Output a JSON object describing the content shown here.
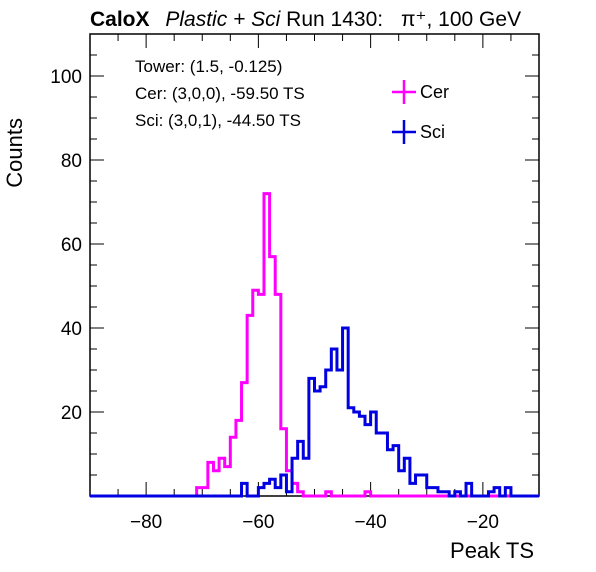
{
  "header": {
    "experiment": "CaloX",
    "config": "Plastic + Sci",
    "run": "Run 1430:",
    "particle": "π⁺, 100 GeV"
  },
  "annotations": [
    "Tower: (1.5, -0.125)",
    "Cer: (3,0,0), -59.50 TS",
    "Sci: (3,0,1), -44.50 TS"
  ],
  "chart_data": {
    "type": "histogram",
    "xlabel": "Peak TS",
    "ylabel": "Counts",
    "xlim": [
      -90,
      -10
    ],
    "ylim": [
      0,
      110
    ],
    "bin_width": 1,
    "x_ticks": [
      -80,
      -60,
      -40,
      -20
    ],
    "y_ticks": [
      20,
      40,
      60,
      80,
      100
    ],
    "legend_position": "top-right",
    "series": [
      {
        "name": "Cer",
        "color": "#ff00ff",
        "bins": [
          [
            -71,
            2
          ],
          [
            -70,
            2
          ],
          [
            -69,
            8
          ],
          [
            -68,
            6
          ],
          [
            -67,
            9
          ],
          [
            -66,
            7
          ],
          [
            -65,
            14
          ],
          [
            -64,
            18
          ],
          [
            -63,
            27
          ],
          [
            -62,
            43
          ],
          [
            -61,
            49
          ],
          [
            -60,
            48
          ],
          [
            -59,
            72
          ],
          [
            -58,
            57
          ],
          [
            -57,
            48
          ],
          [
            -56,
            16
          ],
          [
            -55,
            6
          ],
          [
            -54,
            3
          ],
          [
            -53,
            1
          ],
          [
            -48,
            1
          ],
          [
            -41,
            1
          ]
        ]
      },
      {
        "name": "Sci",
        "color": "#0000e0",
        "bins": [
          [
            -63,
            3
          ],
          [
            -60,
            2
          ],
          [
            -59,
            3
          ],
          [
            -58,
            4
          ],
          [
            -57,
            2
          ],
          [
            -56,
            5
          ],
          [
            -55,
            1
          ],
          [
            -54,
            9
          ],
          [
            -53,
            13
          ],
          [
            -52,
            9
          ],
          [
            -51,
            28
          ],
          [
            -50,
            25
          ],
          [
            -49,
            26
          ],
          [
            -48,
            30
          ],
          [
            -47,
            35
          ],
          [
            -46,
            30
          ],
          [
            -45,
            40
          ],
          [
            -44,
            21
          ],
          [
            -43,
            20
          ],
          [
            -42,
            19
          ],
          [
            -41,
            17
          ],
          [
            -40,
            20
          ],
          [
            -39,
            15
          ],
          [
            -38,
            15
          ],
          [
            -37,
            11
          ],
          [
            -36,
            12
          ],
          [
            -35,
            6
          ],
          [
            -34,
            9
          ],
          [
            -33,
            3
          ],
          [
            -32,
            5
          ],
          [
            -31,
            5
          ],
          [
            -30,
            2
          ],
          [
            -29,
            2
          ],
          [
            -28,
            1
          ],
          [
            -27,
            1
          ],
          [
            -25,
            1
          ],
          [
            -23,
            3
          ],
          [
            -19,
            1
          ],
          [
            -18,
            2
          ],
          [
            -16,
            2
          ]
        ]
      }
    ]
  }
}
